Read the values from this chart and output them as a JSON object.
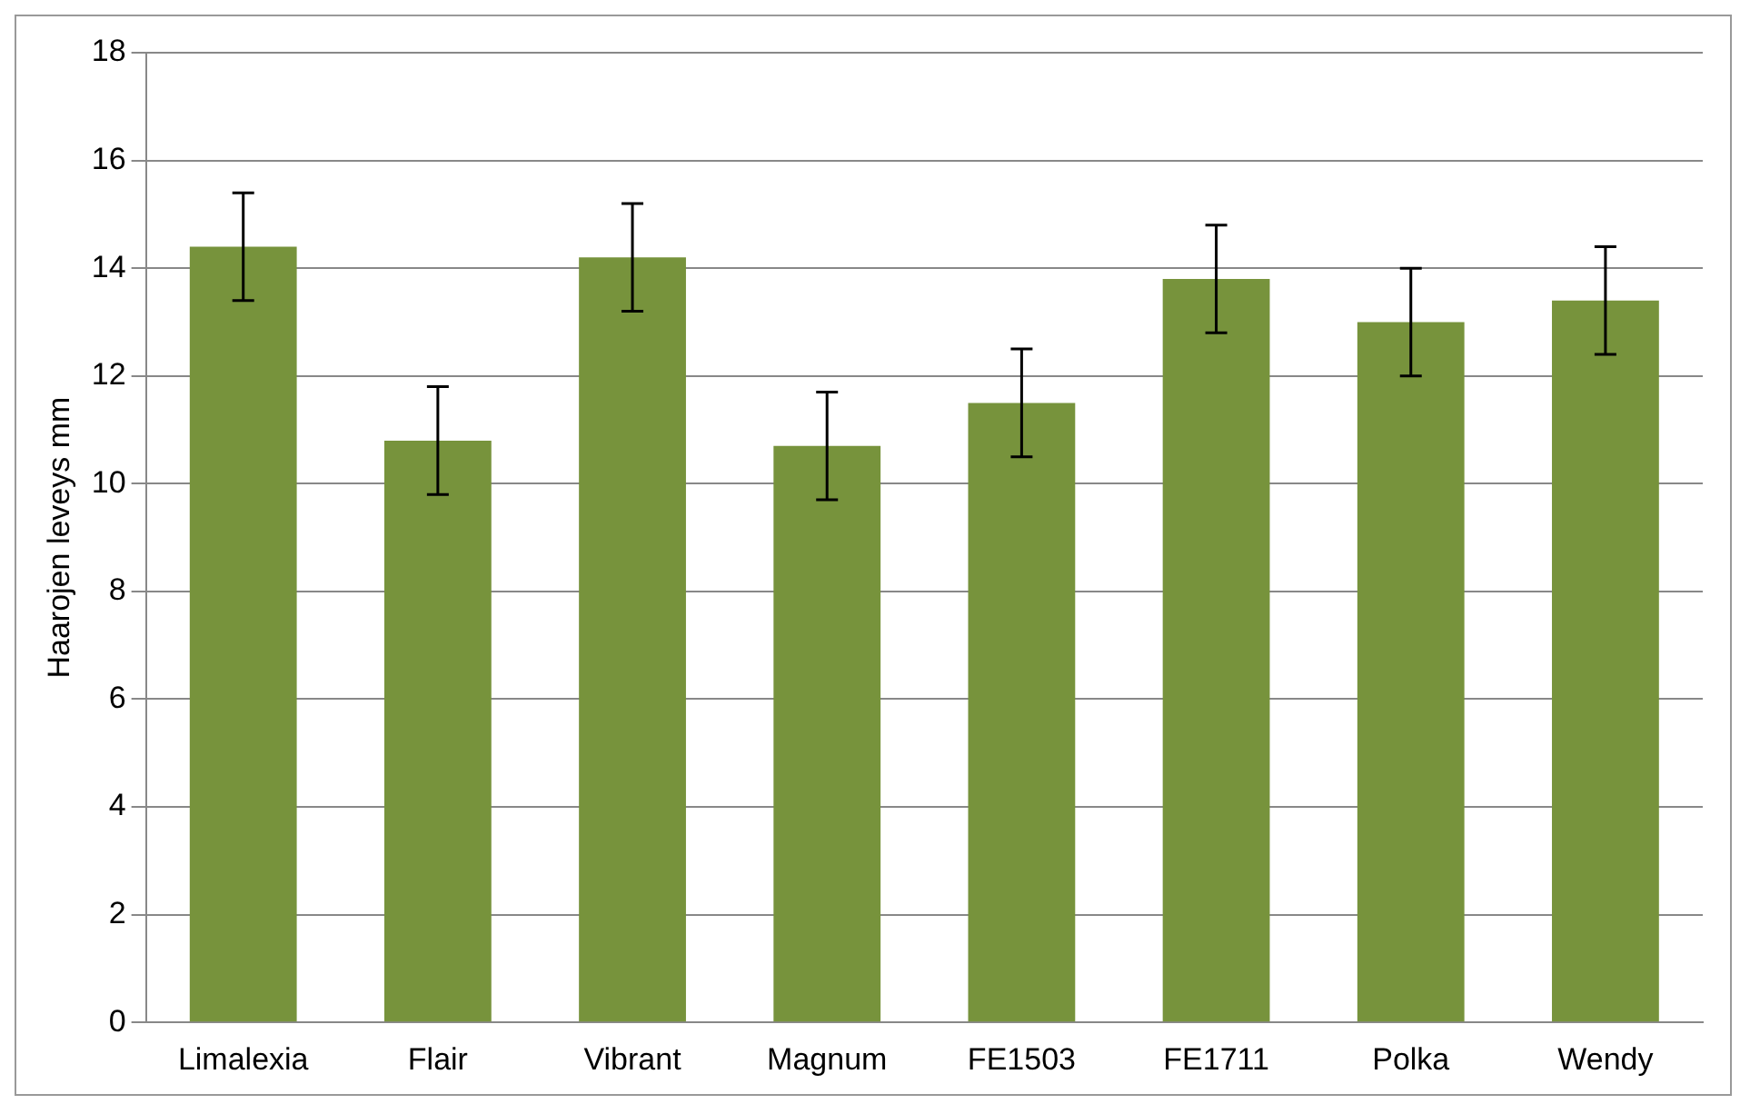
{
  "chart_data": {
    "type": "bar",
    "ylabel": "Haarojen leveys mm",
    "categories": [
      "Limalexia",
      "Flair",
      "Vibrant",
      "Magnum",
      "FE1503",
      "FE1711",
      "Polka",
      "Wendy"
    ],
    "series": [
      {
        "color": "#77933c",
        "values": [
          14.4,
          10.8,
          14.2,
          10.7,
          11.5,
          13.8,
          13.0,
          13.4
        ],
        "errors": [
          1.0,
          1.0,
          1.0,
          1.0,
          1.0,
          1.0,
          1.0,
          1.0
        ]
      }
    ],
    "ylim": [
      0,
      18
    ],
    "yticks": [
      0,
      2,
      4,
      6,
      8,
      10,
      12,
      14,
      16,
      18
    ],
    "grid": "y",
    "legend": false
  }
}
